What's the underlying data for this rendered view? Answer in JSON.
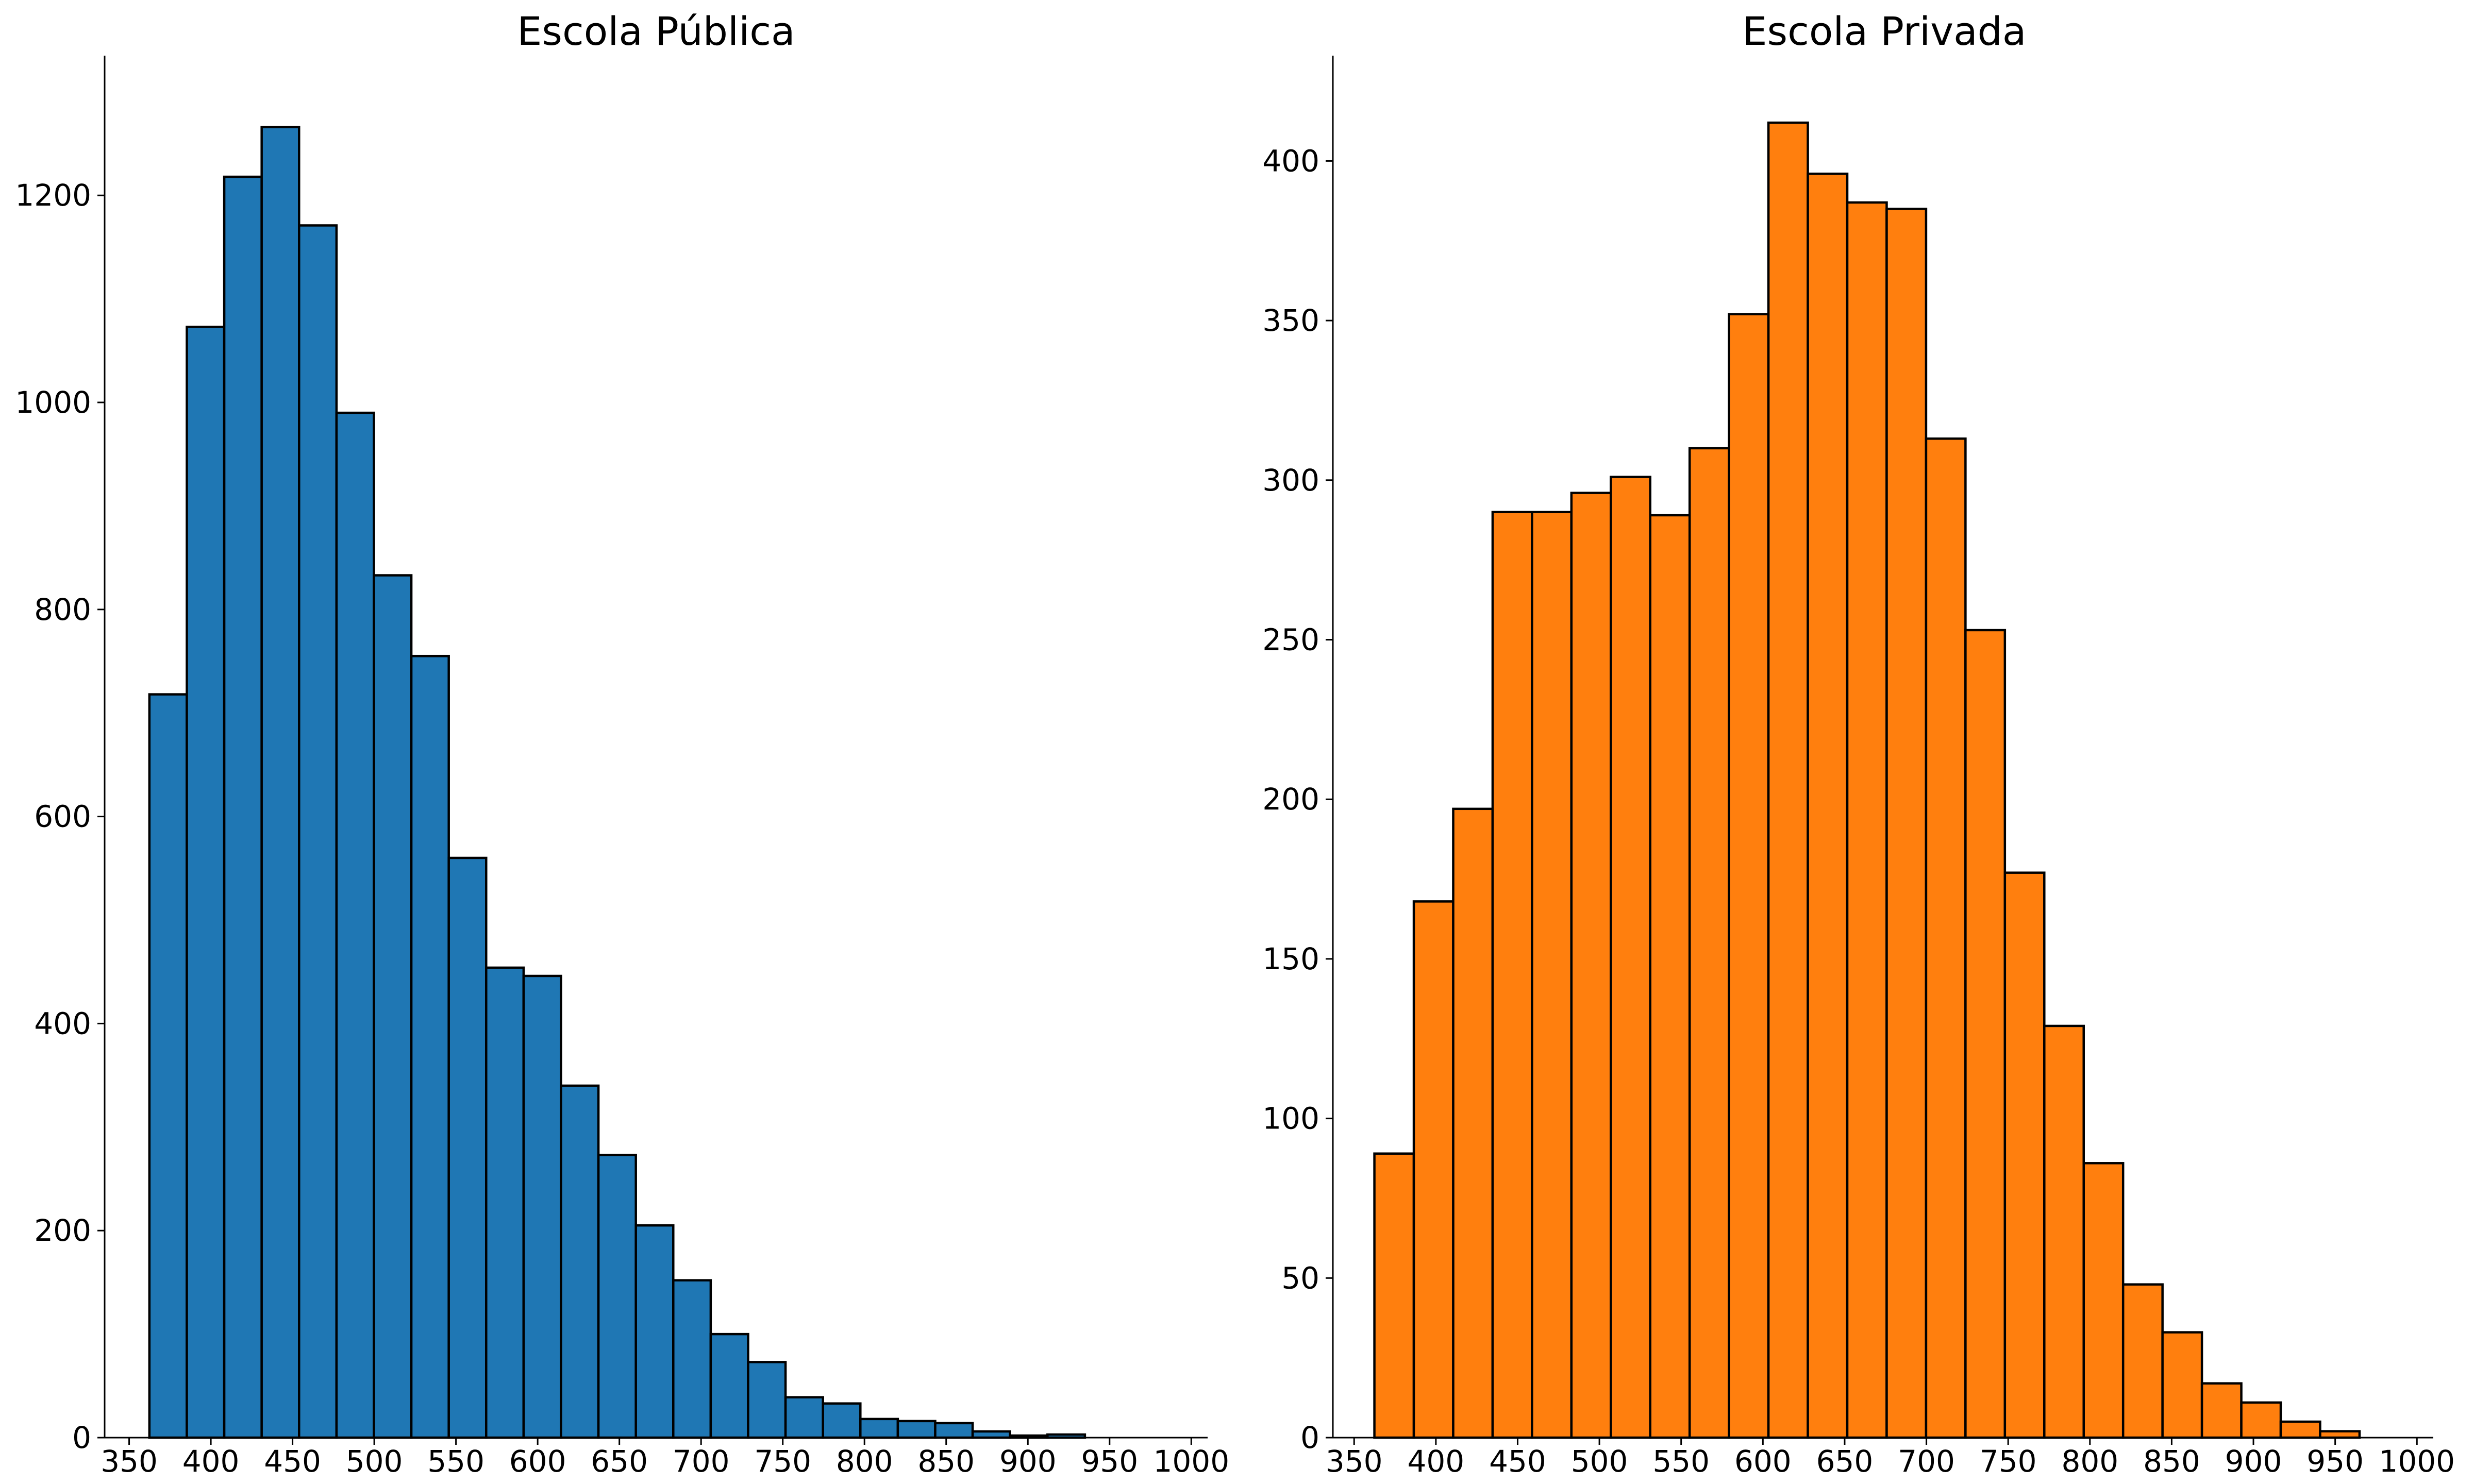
{
  "chart_data": [
    {
      "type": "bar",
      "title": "Escola Pública",
      "xlabel": "",
      "ylabel": "",
      "color": "#1f77b4",
      "bin_edges": [
        362.4,
        385.3,
        408.2,
        431.1,
        454.0,
        476.9,
        499.8,
        522.7,
        545.6,
        568.5,
        591.4,
        614.3,
        637.2,
        660.1,
        683.0,
        705.9,
        728.8,
        751.7,
        774.6,
        797.5,
        820.4,
        843.3,
        866.2,
        889.1,
        912.0,
        934.9
      ],
      "values": [
        718,
        1073,
        1218,
        1266,
        1171,
        990,
        833,
        755,
        560,
        454,
        446,
        340,
        273,
        205,
        152,
        100,
        73,
        39,
        33,
        18,
        16,
        14,
        6,
        2,
        3
      ],
      "xlim": [
        335,
        1010
      ],
      "ylim": [
        0,
        1335
      ],
      "xticks": [
        "350",
        "400",
        "450",
        "500",
        "550",
        "600",
        "650",
        "700",
        "750",
        "800",
        "850",
        "900",
        "950",
        "1000"
      ],
      "xtick_values": [
        350,
        400,
        450,
        500,
        550,
        600,
        650,
        700,
        750,
        800,
        850,
        900,
        950,
        1000
      ],
      "yticks": [
        "0",
        "200",
        "400",
        "600",
        "800",
        "1000",
        "1200"
      ],
      "ytick_values": [
        0,
        200,
        400,
        600,
        800,
        1000,
        1200
      ]
    },
    {
      "type": "bar",
      "title": "Escola Privada",
      "xlabel": "",
      "ylabel": "",
      "color": "#ff7f0e",
      "bin_edges": [
        362.4,
        386.5,
        410.6,
        434.7,
        458.8,
        482.9,
        507.0,
        531.1,
        555.2,
        579.3,
        603.4,
        627.5,
        651.6,
        675.7,
        699.8,
        723.9,
        748.0,
        772.1,
        796.2,
        820.3,
        844.4,
        868.5,
        892.6,
        916.7,
        940.8,
        964.9
      ],
      "values": [
        89,
        168,
        197,
        290,
        290,
        296,
        301,
        289,
        310,
        352,
        412,
        396,
        387,
        385,
        313,
        253,
        177,
        129,
        86,
        48,
        33,
        17,
        11,
        5,
        2
      ],
      "xlim": [
        337,
        1010
      ],
      "ylim": [
        0,
        433
      ],
      "xticks": [
        "350",
        "400",
        "450",
        "500",
        "550",
        "600",
        "650",
        "700",
        "750",
        "800",
        "850",
        "900",
        "950",
        "1000"
      ],
      "xtick_values": [
        350,
        400,
        450,
        500,
        550,
        600,
        650,
        700,
        750,
        800,
        850,
        900,
        950,
        1000
      ],
      "yticks": [
        "0",
        "50",
        "100",
        "150",
        "200",
        "250",
        "300",
        "350",
        "400"
      ],
      "ytick_values": [
        0,
        50,
        100,
        150,
        200,
        250,
        300,
        350,
        400
      ]
    }
  ]
}
